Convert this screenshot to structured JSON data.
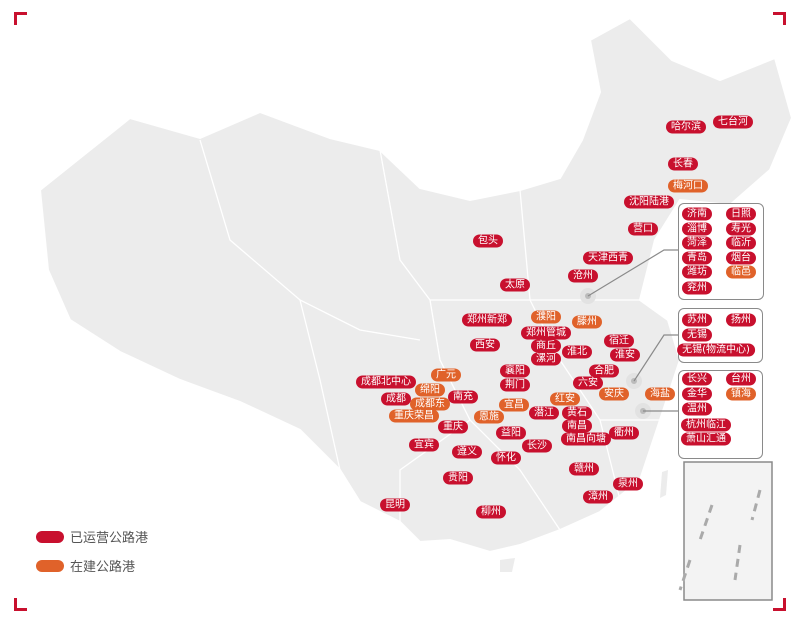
{
  "colors": {
    "operating": "#c8102e",
    "construction": "#e0622a",
    "land": "#ececec",
    "border": "#ffffff"
  },
  "legend": [
    {
      "label": "已运营公路港",
      "status": "operating"
    },
    {
      "label": "在建公路港",
      "status": "construction"
    }
  ],
  "ports": [
    {
      "name": "哈尔滨",
      "status": "operating"
    },
    {
      "name": "七台河",
      "status": "operating"
    },
    {
      "name": "长春",
      "status": "operating"
    },
    {
      "name": "梅河口",
      "status": "construction"
    },
    {
      "name": "沈阳陆港",
      "status": "operating"
    },
    {
      "name": "营口",
      "status": "operating"
    },
    {
      "name": "包头",
      "status": "operating"
    },
    {
      "name": "天津西青",
      "status": "operating"
    },
    {
      "name": "沧州",
      "status": "operating"
    },
    {
      "name": "太原",
      "status": "operating"
    },
    {
      "name": "郑州新郑",
      "status": "operating"
    },
    {
      "name": "濮阳",
      "status": "construction"
    },
    {
      "name": "滕州",
      "status": "construction"
    },
    {
      "name": "郑州管城",
      "status": "operating"
    },
    {
      "name": "商丘",
      "status": "operating"
    },
    {
      "name": "淮北",
      "status": "operating"
    },
    {
      "name": "宿迁",
      "status": "operating"
    },
    {
      "name": "淮安",
      "status": "operating"
    },
    {
      "name": "漯河",
      "status": "operating"
    },
    {
      "name": "西安",
      "status": "operating"
    },
    {
      "name": "襄阳",
      "status": "operating"
    },
    {
      "name": "荆门",
      "status": "operating"
    },
    {
      "name": "合肥",
      "status": "operating"
    },
    {
      "name": "六安",
      "status": "operating"
    },
    {
      "name": "安庆",
      "status": "construction"
    },
    {
      "name": "海盐",
      "status": "construction"
    },
    {
      "name": "广元",
      "status": "construction"
    },
    {
      "name": "成都北中心",
      "status": "operating"
    },
    {
      "name": "绵阳",
      "status": "construction"
    },
    {
      "name": "南充",
      "status": "operating"
    },
    {
      "name": "成都",
      "status": "operating"
    },
    {
      "name": "成都东",
      "status": "construction"
    },
    {
      "name": "重庆荣昌",
      "status": "construction"
    },
    {
      "name": "宜昌",
      "status": "construction"
    },
    {
      "name": "红安",
      "status": "construction"
    },
    {
      "name": "潜江",
      "status": "operating"
    },
    {
      "name": "黄石",
      "status": "operating"
    },
    {
      "name": "恩施",
      "status": "construction"
    },
    {
      "name": "重庆",
      "status": "operating"
    },
    {
      "name": "南昌",
      "status": "operating"
    },
    {
      "name": "南昌向塘",
      "status": "operating"
    },
    {
      "name": "衢州",
      "status": "operating"
    },
    {
      "name": "益阳",
      "status": "operating"
    },
    {
      "name": "宜宾",
      "status": "operating"
    },
    {
      "name": "遵义",
      "status": "operating"
    },
    {
      "name": "长沙",
      "status": "operating"
    },
    {
      "name": "怀化",
      "status": "operating"
    },
    {
      "name": "赣州",
      "status": "operating"
    },
    {
      "name": "泉州",
      "status": "operating"
    },
    {
      "name": "贵阳",
      "status": "operating"
    },
    {
      "name": "漳州",
      "status": "operating"
    },
    {
      "name": "昆明",
      "status": "operating"
    },
    {
      "name": "柳州",
      "status": "operating"
    }
  ],
  "groups": [
    {
      "region": "shandong",
      "ports": [
        {
          "name": "济南",
          "status": "operating"
        },
        {
          "name": "日照",
          "status": "operating"
        },
        {
          "name": "淄博",
          "status": "operating"
        },
        {
          "name": "寿光",
          "status": "operating"
        },
        {
          "name": "菏泽",
          "status": "operating"
        },
        {
          "name": "临沂",
          "status": "operating"
        },
        {
          "name": "青岛",
          "status": "operating"
        },
        {
          "name": "烟台",
          "status": "operating"
        },
        {
          "name": "潍坊",
          "status": "operating"
        },
        {
          "name": "临邑",
          "status": "construction"
        },
        {
          "name": "兖州",
          "status": "operating"
        }
      ]
    },
    {
      "region": "jiangsu",
      "ports": [
        {
          "name": "苏州",
          "status": "operating"
        },
        {
          "name": "扬州",
          "status": "operating"
        },
        {
          "name": "无锡",
          "status": "operating"
        },
        {
          "name": "无锡(物流中心)",
          "status": "operating"
        }
      ]
    },
    {
      "region": "zhejiang",
      "ports": [
        {
          "name": "长兴",
          "status": "operating"
        },
        {
          "name": "台州",
          "status": "operating"
        },
        {
          "name": "金华",
          "status": "operating"
        },
        {
          "name": "镇海",
          "status": "construction"
        },
        {
          "name": "温州",
          "status": "operating"
        },
        {
          "name": "杭州临江",
          "status": "operating"
        },
        {
          "name": "萧山汇通",
          "status": "operating"
        }
      ]
    }
  ]
}
